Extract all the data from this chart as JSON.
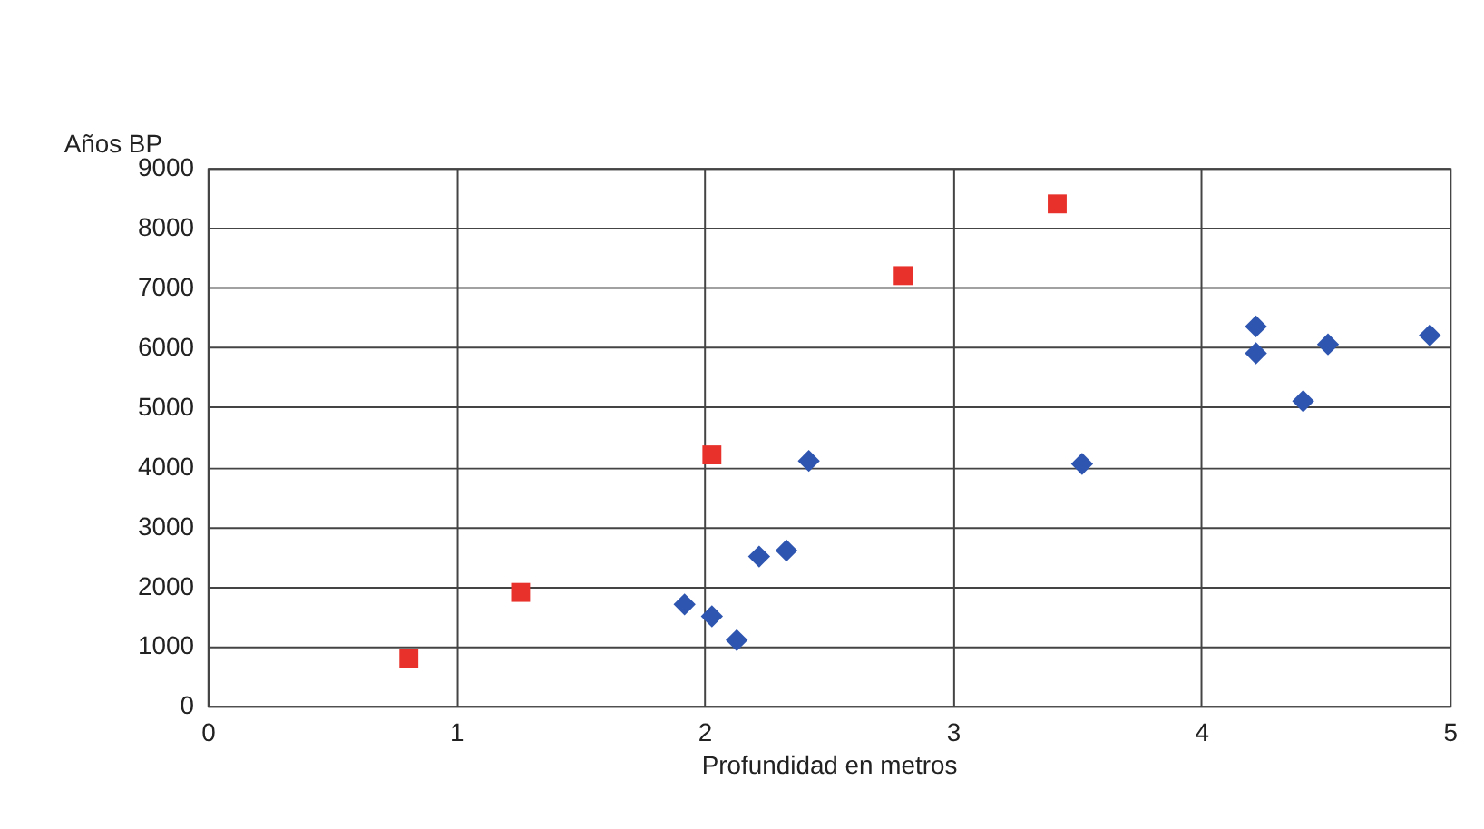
{
  "chart_data": {
    "type": "scatter",
    "xlabel": "Profundidad en metros",
    "ylabel": "Años BP",
    "xlim": [
      0,
      5
    ],
    "xticks": [
      0,
      1,
      2,
      3,
      4,
      5
    ],
    "ylim": [
      0,
      9000
    ],
    "yticks": [
      0,
      1000,
      2000,
      3000,
      4000,
      5000,
      6000,
      7000,
      8000,
      9000
    ],
    "grid": true,
    "series": [
      {
        "color": "#e8312a",
        "marker": "square",
        "x": [
          0.81,
          1.26,
          2.03,
          2.8,
          3.42
        ],
        "values": [
          800,
          1900,
          4200,
          7200,
          8400
        ]
      },
      {
        "color": "#2e55b0",
        "marker": "diamond",
        "x": [
          1.92,
          2.03,
          2.13,
          2.22,
          2.33,
          2.42,
          3.52,
          4.22,
          4.22,
          4.41,
          4.51,
          4.92
        ],
        "values": [
          1700,
          1500,
          1100,
          2500,
          2600,
          4100,
          4050,
          6350,
          5900,
          5100,
          6050,
          6200
        ]
      }
    ]
  }
}
